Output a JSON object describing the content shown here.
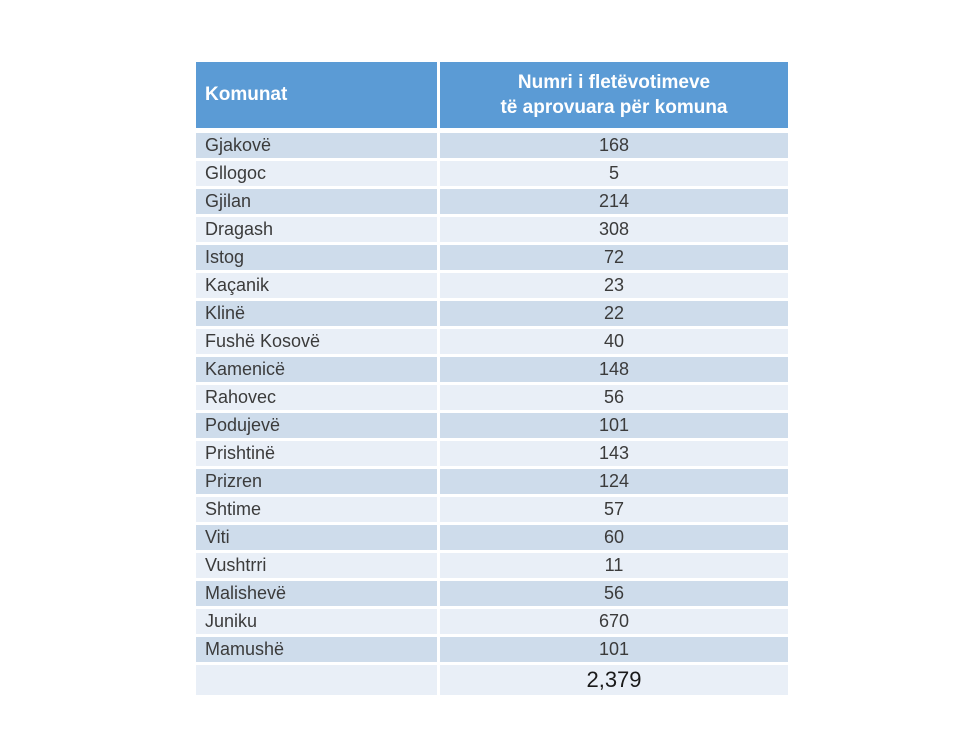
{
  "chart_data": {
    "type": "table",
    "title": "Numri i fletëvotimeve të aprovuara për komuna",
    "columns": [
      "Komunat",
      "Numri i fletëvotimeve të aprovuara për komuna"
    ],
    "categories": [
      "Gjakovë",
      "Gllogoc",
      "Gjilan",
      "Dragash",
      "Istog",
      "Kaçanik",
      "Klinë",
      "Fushë Kosovë",
      "Kamenicë",
      "Rahovec",
      "Podujevë",
      "Prishtinë",
      "Prizren",
      "Shtime",
      "Viti",
      "Vushtrri",
      "Malishevë",
      "Juniku",
      "Mamushë"
    ],
    "values": [
      168,
      5,
      214,
      308,
      72,
      23,
      22,
      40,
      148,
      56,
      101,
      143,
      124,
      57,
      60,
      11,
      56,
      670,
      101
    ],
    "total": 2379
  },
  "table": {
    "header": {
      "komunat": "Komunat",
      "numri_line1": "Numri i fletëvotimeve",
      "numri_line2": "të aprovuara për komuna"
    },
    "rows": [
      {
        "komuna": "Gjakovë",
        "value": "168"
      },
      {
        "komuna": "Gllogoc",
        "value": "5"
      },
      {
        "komuna": "Gjilan",
        "value": "214"
      },
      {
        "komuna": "Dragash",
        "value": "308"
      },
      {
        "komuna": "Istog",
        "value": "72"
      },
      {
        "komuna": "Kaçanik",
        "value": "23"
      },
      {
        "komuna": "Klinë",
        "value": "22"
      },
      {
        "komuna": "Fushë Kosovë",
        "value": "40"
      },
      {
        "komuna": "Kamenicë",
        "value": "148"
      },
      {
        "komuna": "Rahovec",
        "value": "56"
      },
      {
        "komuna": "Podujevë",
        "value": "101"
      },
      {
        "komuna": "Prishtinë",
        "value": "143"
      },
      {
        "komuna": "Prizren",
        "value": "124"
      },
      {
        "komuna": "Shtime",
        "value": "57"
      },
      {
        "komuna": "Viti",
        "value": "60"
      },
      {
        "komuna": "Vushtrri",
        "value": "11"
      },
      {
        "komuna": "Malishevë",
        "value": "56"
      },
      {
        "komuna": "Juniku",
        "value": "670"
      },
      {
        "komuna": "Mamushë",
        "value": "101"
      }
    ],
    "total_label": "",
    "total_value": "2,379"
  },
  "colors": {
    "header_bg": "#5b9bd5",
    "band_dark": "#cedceb",
    "band_light": "#e9eff7",
    "header_text": "#ffffff",
    "body_text": "#3b3b3b",
    "page_bg": "#ffffff"
  }
}
